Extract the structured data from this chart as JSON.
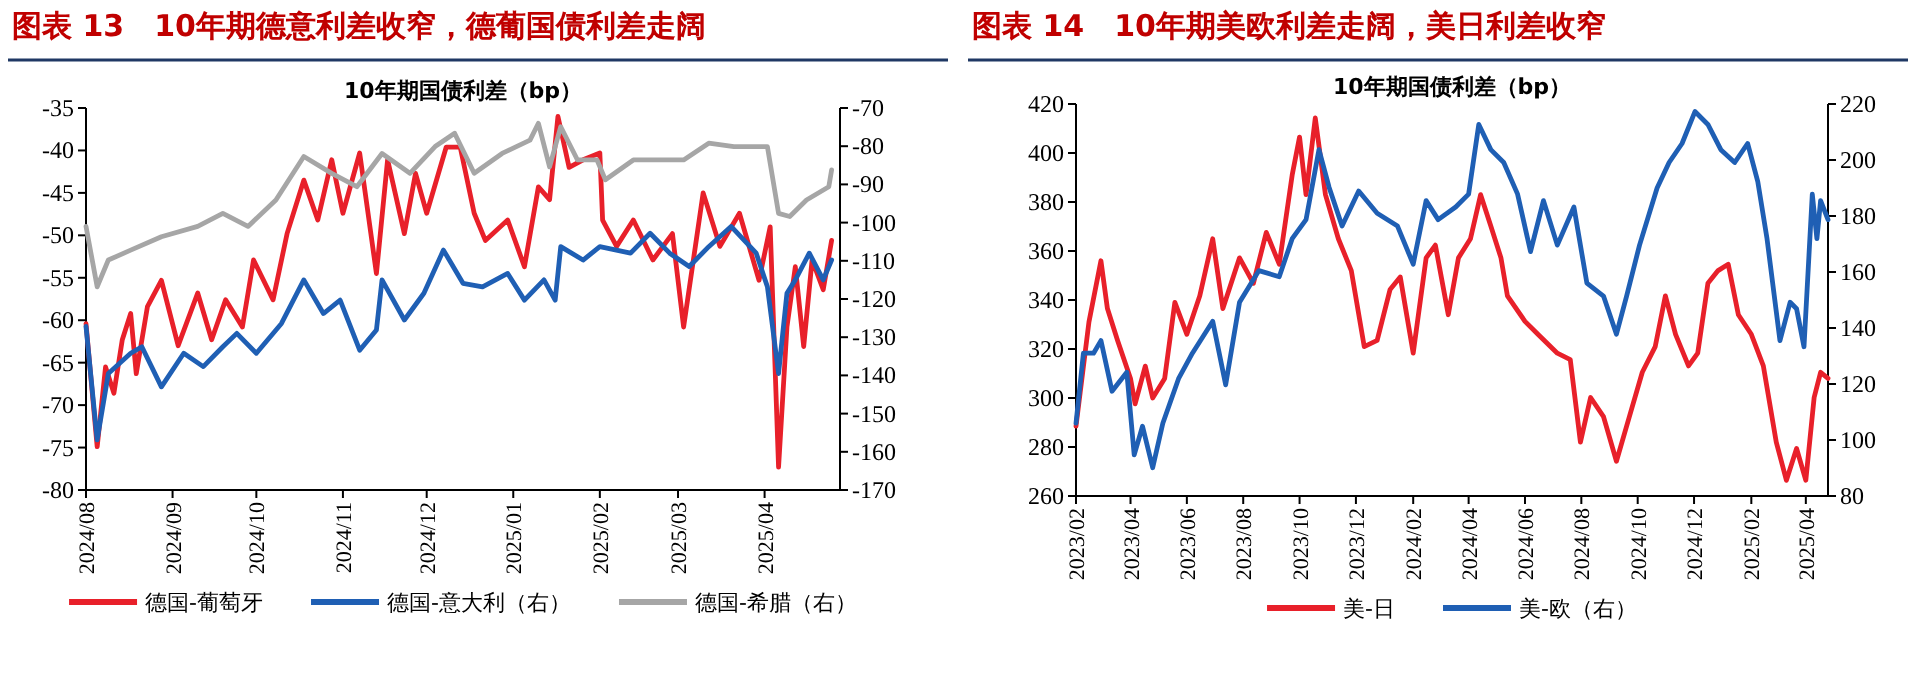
{
  "chart_data": [
    {
      "type": "line",
      "title": "图表 13　10年期德意利差收窄，德葡国债利差走阔",
      "subtitle": "10年期国债利差（bp）",
      "legend": "bottom",
      "line_style": "solid",
      "marker": "none",
      "xlim": [
        "2024-08-01",
        "2025-04-28"
      ],
      "xticks": [
        {
          "value": "2024-08-01",
          "label": "2024/08"
        },
        {
          "value": "2024-09-01",
          "label": "2024/09"
        },
        {
          "value": "2024-10-01",
          "label": "2024/10"
        },
        {
          "value": "2024-11-01",
          "label": "2024/11"
        },
        {
          "value": "2024-12-01",
          "label": "2024/12"
        },
        {
          "value": "2025-01-01",
          "label": "2025/01"
        },
        {
          "value": "2025-02-01",
          "label": "2025/02"
        },
        {
          "value": "2025-03-01",
          "label": "2025/03"
        },
        {
          "value": "2025-04-01",
          "label": "2025/04"
        }
      ],
      "ylim": [
        -80,
        -35
      ],
      "yticks": [
        -80,
        -75,
        -70,
        -65,
        -60,
        -55,
        -50,
        -45,
        -40,
        -35
      ],
      "y2lim": [
        -170,
        -70
      ],
      "y2ticks": [
        -170,
        -160,
        -150,
        -140,
        -130,
        -120,
        -110,
        -100,
        -90,
        -80,
        -70
      ],
      "series": [
        {
          "name": "德国-葡萄牙",
          "color": "#e8202a",
          "x": [
            "2024-08-01",
            "2024-08-05",
            "2024-08-08",
            "2024-08-11",
            "2024-08-14",
            "2024-08-17",
            "2024-08-19",
            "2024-08-23",
            "2024-08-28",
            "2024-09-03",
            "2024-09-10",
            "2024-09-15",
            "2024-09-20",
            "2024-09-26",
            "2024-09-30",
            "2024-10-07",
            "2024-10-12",
            "2024-10-18",
            "2024-10-23",
            "2024-10-28",
            "2024-11-01",
            "2024-11-07",
            "2024-11-13",
            "2024-11-17",
            "2024-11-23",
            "2024-11-27",
            "2024-12-01",
            "2024-12-08",
            "2024-12-13",
            "2024-12-18",
            "2024-12-22",
            "2024-12-30",
            "2025-01-05",
            "2025-01-10",
            "2025-01-14",
            "2025-01-17",
            "2025-01-21",
            "2025-01-26",
            "2025-02-01",
            "2025-02-02",
            "2025-02-07",
            "2025-02-13",
            "2025-02-20",
            "2025-02-27",
            "2025-03-03",
            "2025-03-10",
            "2025-03-16",
            "2025-03-23",
            "2025-03-30",
            "2025-04-03",
            "2025-04-06",
            "2025-04-09",
            "2025-04-12",
            "2025-04-15",
            "2025-04-18",
            "2025-04-22",
            "2025-04-25"
          ],
          "values": [
            -60.4,
            -74.9,
            -65.5,
            -68.6,
            -62.3,
            -59.2,
            -66.3,
            -58.4,
            -55.3,
            -63,
            -56.8,
            -62.3,
            -57.6,
            -60.8,
            -52.9,
            -57.6,
            -49.8,
            -43.5,
            -48.2,
            -41.1,
            -47.4,
            -40.3,
            -54.5,
            -41.1,
            -49.8,
            -42.7,
            -47.4,
            -39.6,
            -39.6,
            -47.4,
            -50.6,
            -48.2,
            -53.7,
            -44.3,
            -45.8,
            -36,
            -42,
            -41.1,
            -40.3,
            -48.2,
            -51.3,
            -48.2,
            -52.9,
            -49.8,
            -60.8,
            -45,
            -51.3,
            -47.4,
            -55.3,
            -49,
            -77.3,
            -60.8,
            -53.7,
            -63.1,
            -52.9,
            -56.4,
            -50.6
          ]
        },
        {
          "name": "德国-意大利（右）",
          "color": "#1f5fb4",
          "axis": "y2",
          "x": [
            "2024-08-01",
            "2024-08-05",
            "2024-08-09",
            "2024-08-17",
            "2024-08-21",
            "2024-08-28",
            "2024-09-05",
            "2024-09-12",
            "2024-09-19",
            "2024-09-24",
            "2024-10-01",
            "2024-10-10",
            "2024-10-18",
            "2024-10-25",
            "2024-10-31",
            "2024-11-07",
            "2024-11-13",
            "2024-11-15",
            "2024-11-23",
            "2024-11-30",
            "2024-12-07",
            "2024-12-14",
            "2024-12-21",
            "2024-12-30",
            "2025-01-05",
            "2025-01-12",
            "2025-01-16",
            "2025-01-18",
            "2025-01-26",
            "2025-02-01",
            "2025-02-12",
            "2025-02-19",
            "2025-02-26",
            "2025-03-05",
            "2025-03-12",
            "2025-03-20",
            "2025-03-29",
            "2025-04-02",
            "2025-04-06",
            "2025-04-09",
            "2025-04-12",
            "2025-04-17",
            "2025-04-22",
            "2025-04-25"
          ],
          "values": [
            -127.2,
            -156.9,
            -139.5,
            -134.2,
            -132.5,
            -143,
            -134.2,
            -137.7,
            -132.5,
            -129,
            -134.2,
            -126.4,
            -115,
            -123.8,
            -120.3,
            -133.4,
            -128.1,
            -115,
            -125.5,
            -118.5,
            -107.2,
            -115.9,
            -116.8,
            -113.3,
            -120.3,
            -115,
            -120.3,
            -106.3,
            -109.8,
            -106.3,
            -108,
            -102.8,
            -108,
            -111.5,
            -106.3,
            -101,
            -108,
            -116.8,
            -139.5,
            -118.5,
            -115,
            -108,
            -115,
            -109.8
          ]
        },
        {
          "name": "德国-希腊（右）",
          "color": "#a6a6a6",
          "axis": "y2",
          "x": [
            "2024-08-01",
            "2024-08-05",
            "2024-08-09",
            "2024-08-17",
            "2024-08-28",
            "2024-09-10",
            "2024-09-19",
            "2024-09-28",
            "2024-10-08",
            "2024-10-18",
            "2024-10-28",
            "2024-11-06",
            "2024-11-15",
            "2024-11-25",
            "2024-12-04",
            "2024-12-11",
            "2024-12-18",
            "2024-12-28",
            "2025-01-07",
            "2025-01-10",
            "2025-01-14",
            "2025-01-18",
            "2025-01-24",
            "2025-01-31",
            "2025-02-03",
            "2025-02-13",
            "2025-02-22",
            "2025-03-03",
            "2025-03-12",
            "2025-03-21",
            "2025-04-02",
            "2025-04-06",
            "2025-04-10",
            "2025-04-16",
            "2025-04-24",
            "2025-04-25"
          ],
          "values": [
            -101,
            -116.8,
            -109.8,
            -107.2,
            -103.7,
            -101,
            -97.6,
            -101,
            -94.1,
            -82.7,
            -87.1,
            -90.6,
            -81.9,
            -87.1,
            -80.1,
            -76.6,
            -87.1,
            -81.9,
            -78.4,
            -74,
            -85.4,
            -74.9,
            -83.6,
            -83.6,
            -88.8,
            -83.6,
            -83.6,
            -83.6,
            -79.2,
            -80.1,
            -80.1,
            -97.6,
            -98.4,
            -94.1,
            -90.6,
            -86.2
          ]
        }
      ]
    },
    {
      "type": "line",
      "title": "图表 14　10年期美欧利差走阔，美日利差收窄",
      "subtitle": "10年期国债利差（bp）",
      "legend": "bottom",
      "line_style": "solid",
      "marker": "none",
      "xlim": [
        "2023-02-01",
        "2025-04-25"
      ],
      "xticks": [
        {
          "value": "2023-02-01",
          "label": "2023/02"
        },
        {
          "value": "2023-04-01",
          "label": "2023/04"
        },
        {
          "value": "2023-06-01",
          "label": "2023/06"
        },
        {
          "value": "2023-08-01",
          "label": "2023/08"
        },
        {
          "value": "2023-10-01",
          "label": "2023/10"
        },
        {
          "value": "2023-12-01",
          "label": "2023/12"
        },
        {
          "value": "2024-02-01",
          "label": "2024/02"
        },
        {
          "value": "2024-04-01",
          "label": "2024/04"
        },
        {
          "value": "2024-06-01",
          "label": "2024/06"
        },
        {
          "value": "2024-08-01",
          "label": "2024/08"
        },
        {
          "value": "2024-10-01",
          "label": "2024/10"
        },
        {
          "value": "2024-12-01",
          "label": "2024/12"
        },
        {
          "value": "2025-02-01",
          "label": "2025/02"
        },
        {
          "value": "2025-04-01",
          "label": "2025/04"
        }
      ],
      "ylim": [
        260,
        420
      ],
      "yticks": [
        260,
        280,
        300,
        320,
        340,
        360,
        380,
        400,
        420
      ],
      "y2lim": [
        80,
        220
      ],
      "y2ticks": [
        80,
        100,
        120,
        140,
        160,
        180,
        200,
        220
      ],
      "series": [
        {
          "name": "美-日",
          "color": "#e8202a",
          "x": [
            "2023-02-01",
            "2023-02-15",
            "2023-02-28",
            "2023-03-07",
            "2023-03-18",
            "2023-04-01",
            "2023-04-06",
            "2023-04-17",
            "2023-04-25",
            "2023-05-08",
            "2023-05-19",
            "2023-06-01",
            "2023-06-15",
            "2023-06-29",
            "2023-07-10",
            "2023-07-28",
            "2023-08-12",
            "2023-08-26",
            "2023-09-09",
            "2023-09-23",
            "2023-10-01",
            "2023-10-08",
            "2023-10-18",
            "2023-10-29",
            "2023-11-12",
            "2023-11-26",
            "2023-12-10",
            "2023-12-24",
            "2024-01-07",
            "2024-01-18",
            "2024-02-01",
            "2024-02-15",
            "2024-02-25",
            "2024-03-10",
            "2024-03-21",
            "2024-04-03",
            "2024-04-14",
            "2024-04-25",
            "2024-05-06",
            "2024-05-13",
            "2024-06-01",
            "2024-06-15",
            "2024-07-06",
            "2024-07-20",
            "2024-07-31",
            "2024-08-11",
            "2024-08-25",
            "2024-09-08",
            "2024-09-22",
            "2024-10-06",
            "2024-10-20",
            "2024-10-31",
            "2024-11-11",
            "2024-11-25",
            "2024-12-05",
            "2024-12-16",
            "2024-12-27",
            "2025-01-07",
            "2025-01-18",
            "2025-02-01",
            "2025-02-14",
            "2025-02-28",
            "2025-03-11",
            "2025-03-22",
            "2025-04-01",
            "2025-04-10",
            "2025-04-17",
            "2025-04-25"
          ],
          "values": [
            288.5,
            331,
            356,
            336.5,
            323.5,
            308,
            297.6,
            313,
            300,
            308,
            339,
            326,
            341.7,
            365,
            336.5,
            357.2,
            346.8,
            367.6,
            354.6,
            391,
            406.5,
            383,
            414.3,
            383,
            365,
            352,
            321,
            323.5,
            344.3,
            349.4,
            318.3,
            357.2,
            362.4,
            334,
            357.2,
            365,
            383,
            370.2,
            357.2,
            341.7,
            331.3,
            326,
            318.3,
            315.7,
            282,
            300.2,
            292.4,
            274.2,
            292.4,
            310.5,
            321,
            341.7,
            326,
            313.1,
            318.3,
            346.8,
            352,
            354.6,
            334,
            326,
            313.1,
            282,
            266.4,
            279.4,
            266.4,
            300.2,
            310.5,
            308
          ]
        },
        {
          "name": "美-欧（右）",
          "color": "#1f5fb4",
          "axis": "y2",
          "x": [
            "2023-02-01",
            "2023-02-09",
            "2023-02-20",
            "2023-02-28",
            "2023-03-12",
            "2023-03-28",
            "2023-04-05",
            "2023-04-14",
            "2023-04-25",
            "2023-05-06",
            "2023-05-23",
            "2023-06-07",
            "2023-06-29",
            "2023-07-13",
            "2023-07-28",
            "2023-08-18",
            "2023-09-09",
            "2023-09-23",
            "2023-10-08",
            "2023-10-22",
            "2023-11-02",
            "2023-11-16",
            "2023-12-04",
            "2023-12-24",
            "2024-01-15",
            "2024-02-01",
            "2024-02-15",
            "2024-02-28",
            "2024-03-18",
            "2024-04-01",
            "2024-04-12",
            "2024-04-25",
            "2024-05-09",
            "2024-05-24",
            "2024-06-07",
            "2024-06-21",
            "2024-07-06",
            "2024-07-24",
            "2024-08-07",
            "2024-08-25",
            "2024-09-08",
            "2024-09-19",
            "2024-10-03",
            "2024-10-22",
            "2024-11-04",
            "2024-11-18",
            "2024-12-02",
            "2024-12-16",
            "2024-12-30",
            "2025-01-14",
            "2025-01-28",
            "2025-02-08",
            "2025-02-18",
            "2025-03-04",
            "2025-03-15",
            "2025-03-22",
            "2025-03-30",
            "2025-04-08",
            "2025-04-13",
            "2025-04-17",
            "2025-04-25"
          ],
          "values": [
            106,
            131,
            131,
            135.5,
            117.4,
            124.2,
            94.7,
            104.9,
            90.1,
            106,
            121.9,
            131,
            142.4,
            119.7,
            149.2,
            160.5,
            158.3,
            171.9,
            178.7,
            203.7,
            190.2,
            176.4,
            188.9,
            181,
            176.4,
            162.8,
            185.5,
            178.7,
            183.2,
            187.8,
            212.7,
            203.7,
            199.1,
            187.8,
            167.3,
            185.5,
            169.6,
            183.2,
            156,
            151.4,
            137.8,
            151.4,
            169.6,
            190,
            199.1,
            205.9,
            217.3,
            212.7,
            203.7,
            199.1,
            205.9,
            192.3,
            171.9,
            135.5,
            149.2,
            146.9,
            133.3,
            187.8,
            171.9,
            185.5,
            178.7
          ]
        }
      ]
    }
  ]
}
